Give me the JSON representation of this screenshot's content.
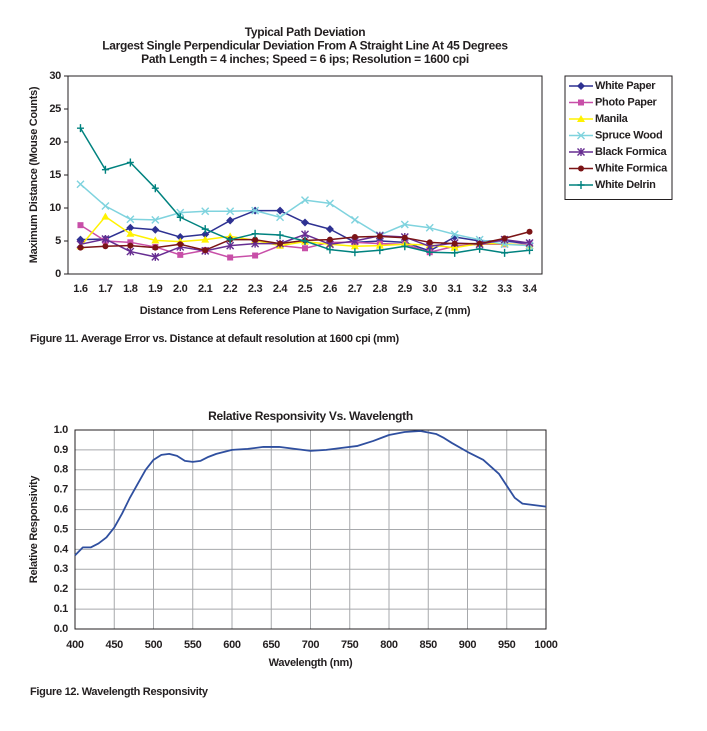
{
  "chart_data": [
    {
      "type": "line",
      "title": "Typical Path Deviation",
      "subtitle": [
        "Largest Single Perpendicular Deviation From A Straight Line At 45 Degrees",
        "Path Length = 4 inches; Speed = 6 ips; Resolution = 1600 cpi"
      ],
      "xlabel": "Distance from Lens Reference Plane to Navigation Surface, Z (mm)",
      "ylabel": "Maximum Distance (Mouse Counts)",
      "categories": [
        "1.6",
        "1.7",
        "1.8",
        "1.9",
        "2.0",
        "2.1",
        "2.2",
        "2.3",
        "2.4",
        "2.5",
        "2.6",
        "2.7",
        "2.8",
        "2.9",
        "3.0",
        "3.1",
        "3.2",
        "3.3",
        "3.4"
      ],
      "series": [
        {
          "name": "White Paper",
          "color": "#2e3192",
          "marker": "diamond",
          "values": [
            5.2,
            5.3,
            7.0,
            6.7,
            5.6,
            6.0,
            8.1,
            9.6,
            9.6,
            7.8,
            6.8,
            4.8,
            5.0,
            4.8,
            3.5,
            5.6,
            5.0,
            5.0,
            4.6
          ]
        },
        {
          "name": "Photo Paper",
          "color": "#c84fa8",
          "marker": "square",
          "values": [
            7.4,
            5.0,
            4.8,
            4.1,
            2.9,
            3.6,
            2.5,
            2.8,
            4.3,
            3.9,
            4.8,
            4.8,
            4.6,
            4.5,
            3.3,
            4.2,
            4.5,
            4.5,
            4.5
          ]
        },
        {
          "name": "Manila",
          "color": "#fff200",
          "marker": "triangle",
          "values": [
            4.2,
            8.7,
            6.1,
            5.1,
            4.9,
            5.2,
            5.7,
            5.1,
            4.3,
            4.9,
            4.5,
            4.2,
            4.3,
            4.5,
            4.4,
            4.0,
            4.6,
            4.6,
            4.3
          ]
        },
        {
          "name": "Spruce Wood",
          "color": "#7fd3de",
          "marker": "x",
          "values": [
            13.6,
            10.3,
            8.3,
            8.2,
            9.3,
            9.5,
            9.5,
            9.6,
            8.6,
            11.2,
            10.7,
            8.2,
            5.9,
            7.5,
            7.0,
            6.0,
            5.2,
            4.5,
            4.3
          ]
        },
        {
          "name": "Black Formica",
          "color": "#662d91",
          "marker": "asterisk",
          "values": [
            4.5,
            5.3,
            3.4,
            2.6,
            4.1,
            3.5,
            4.3,
            4.6,
            4.6,
            6.0,
            4.5,
            5.0,
            5.8,
            5.6,
            4.2,
            4.7,
            4.5,
            5.2,
            4.7
          ]
        },
        {
          "name": "White Formica",
          "color": "#7b1416",
          "marker": "circle",
          "values": [
            4.0,
            4.2,
            4.3,
            4.0,
            4.5,
            3.6,
            5.2,
            5.2,
            4.6,
            5.1,
            5.2,
            5.6,
            5.7,
            5.5,
            4.8,
            4.6,
            4.6,
            5.4,
            6.4
          ]
        },
        {
          "name": "White Delrin",
          "color": "#00827f",
          "marker": "plus",
          "values": [
            22.1,
            15.8,
            16.9,
            13.0,
            8.6,
            6.8,
            5.2,
            6.1,
            5.9,
            5.0,
            3.7,
            3.3,
            3.6,
            4.2,
            3.3,
            3.2,
            3.8,
            3.2,
            3.6
          ]
        }
      ],
      "ylim": [
        0,
        30
      ],
      "yticks": [
        0,
        5,
        10,
        15,
        20,
        25,
        30
      ],
      "grid": false,
      "legend": "right",
      "caption": "Figure 11. Average Error vs. Distance at default resolution at 1600 cpi (mm)"
    },
    {
      "type": "line",
      "title": "Relative Responsivity Vs. Wavelength",
      "xlabel": "Wavelength (nm)",
      "ylabel": "Relative Responsivity",
      "x": [
        400,
        410,
        420,
        430,
        440,
        450,
        460,
        470,
        480,
        490,
        500,
        510,
        520,
        530,
        540,
        550,
        560,
        570,
        580,
        590,
        600,
        620,
        640,
        660,
        680,
        700,
        720,
        740,
        760,
        780,
        800,
        820,
        840,
        860,
        870,
        880,
        900,
        920,
        940,
        950,
        960,
        970,
        980,
        1000
      ],
      "series": [
        {
          "name": "Relative Responsivity",
          "color": "#2f4f9f",
          "values": [
            0.37,
            0.41,
            0.41,
            0.43,
            0.46,
            0.51,
            0.58,
            0.66,
            0.73,
            0.8,
            0.85,
            0.875,
            0.88,
            0.87,
            0.845,
            0.84,
            0.845,
            0.865,
            0.88,
            0.89,
            0.9,
            0.905,
            0.915,
            0.915,
            0.905,
            0.895,
            0.9,
            0.91,
            0.92,
            0.945,
            0.975,
            0.99,
            0.995,
            0.98,
            0.96,
            0.935,
            0.89,
            0.85,
            0.78,
            0.72,
            0.66,
            0.63,
            0.625,
            0.615
          ]
        }
      ],
      "xlim": [
        400,
        1000
      ],
      "xticks": [
        400,
        450,
        500,
        550,
        600,
        650,
        700,
        750,
        800,
        850,
        900,
        950,
        1000
      ],
      "ylim": [
        0,
        1
      ],
      "yticks": [
        {
          "value": 0,
          "label": "0.0"
        },
        0.1,
        0.2,
        0.3,
        0.4,
        0.5,
        0.6,
        0.7,
        0.8,
        0.9,
        {
          "value": 1,
          "label": "1.0"
        }
      ],
      "grid": true,
      "caption": "Figure 12. Wavelength Responsivity"
    }
  ]
}
